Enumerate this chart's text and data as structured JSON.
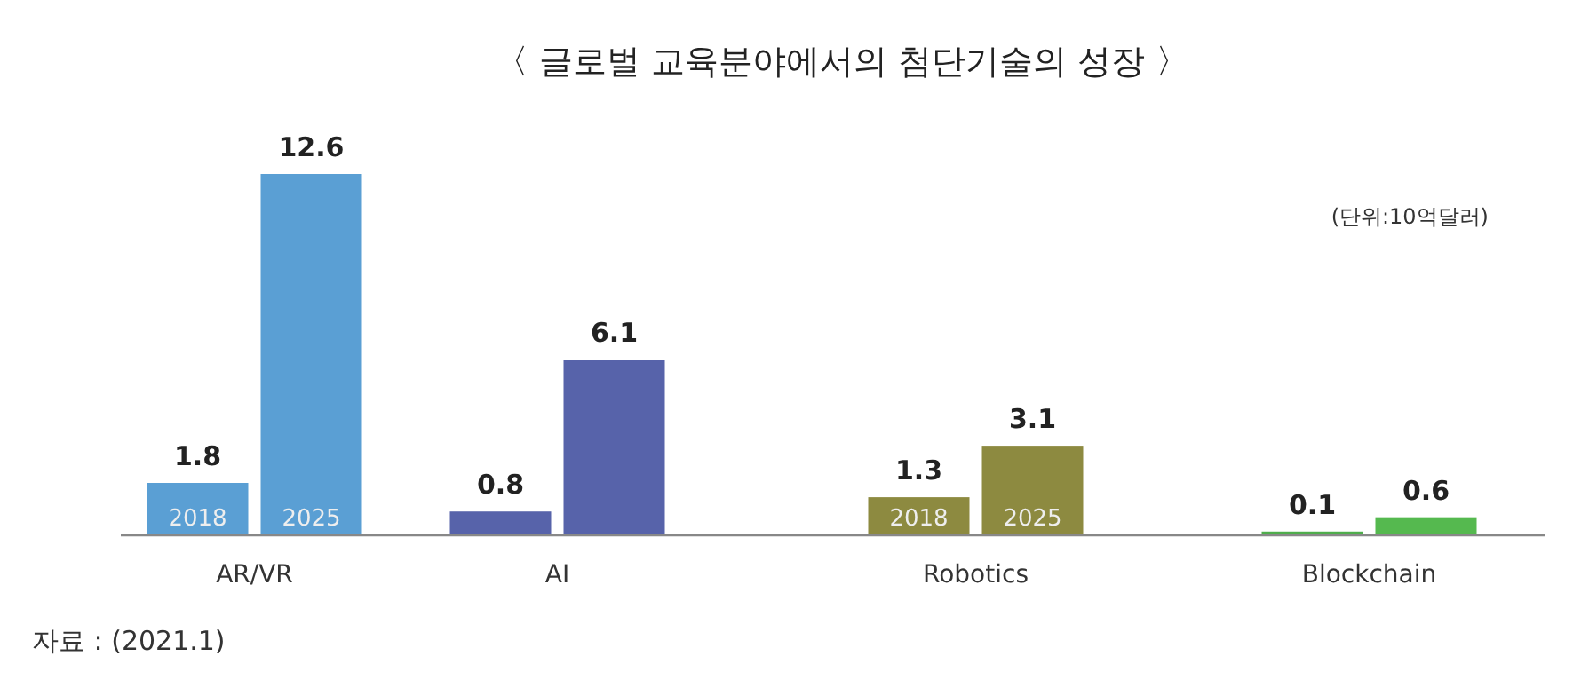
{
  "chart_data": {
    "type": "bar",
    "title": "〈 글로벌 교육분야에서의 첨단기술의 성장 〉",
    "categories": [
      "AR/VR",
      "AI",
      "Robotics",
      "Blockchain"
    ],
    "series": [
      {
        "name": "2018",
        "colors": [
          "#5a9fd4",
          "#5763aa",
          "#8d8a40",
          "#4fae4c"
        ],
        "values": [
          1.8,
          0.8,
          1.3,
          0.1
        ]
      },
      {
        "name": "2025",
        "colors": [
          "#5a9fd4",
          "#5763aa",
          "#8d8a40",
          "#55b94f"
        ],
        "values": [
          12.6,
          6.1,
          3.1,
          0.6
        ]
      }
    ],
    "data_labels": true,
    "legend": false,
    "tick_labels": "x",
    "annotations": [
      "(단위:10억달러)",
      "자료 : (2021.1)"
    ]
  }
}
